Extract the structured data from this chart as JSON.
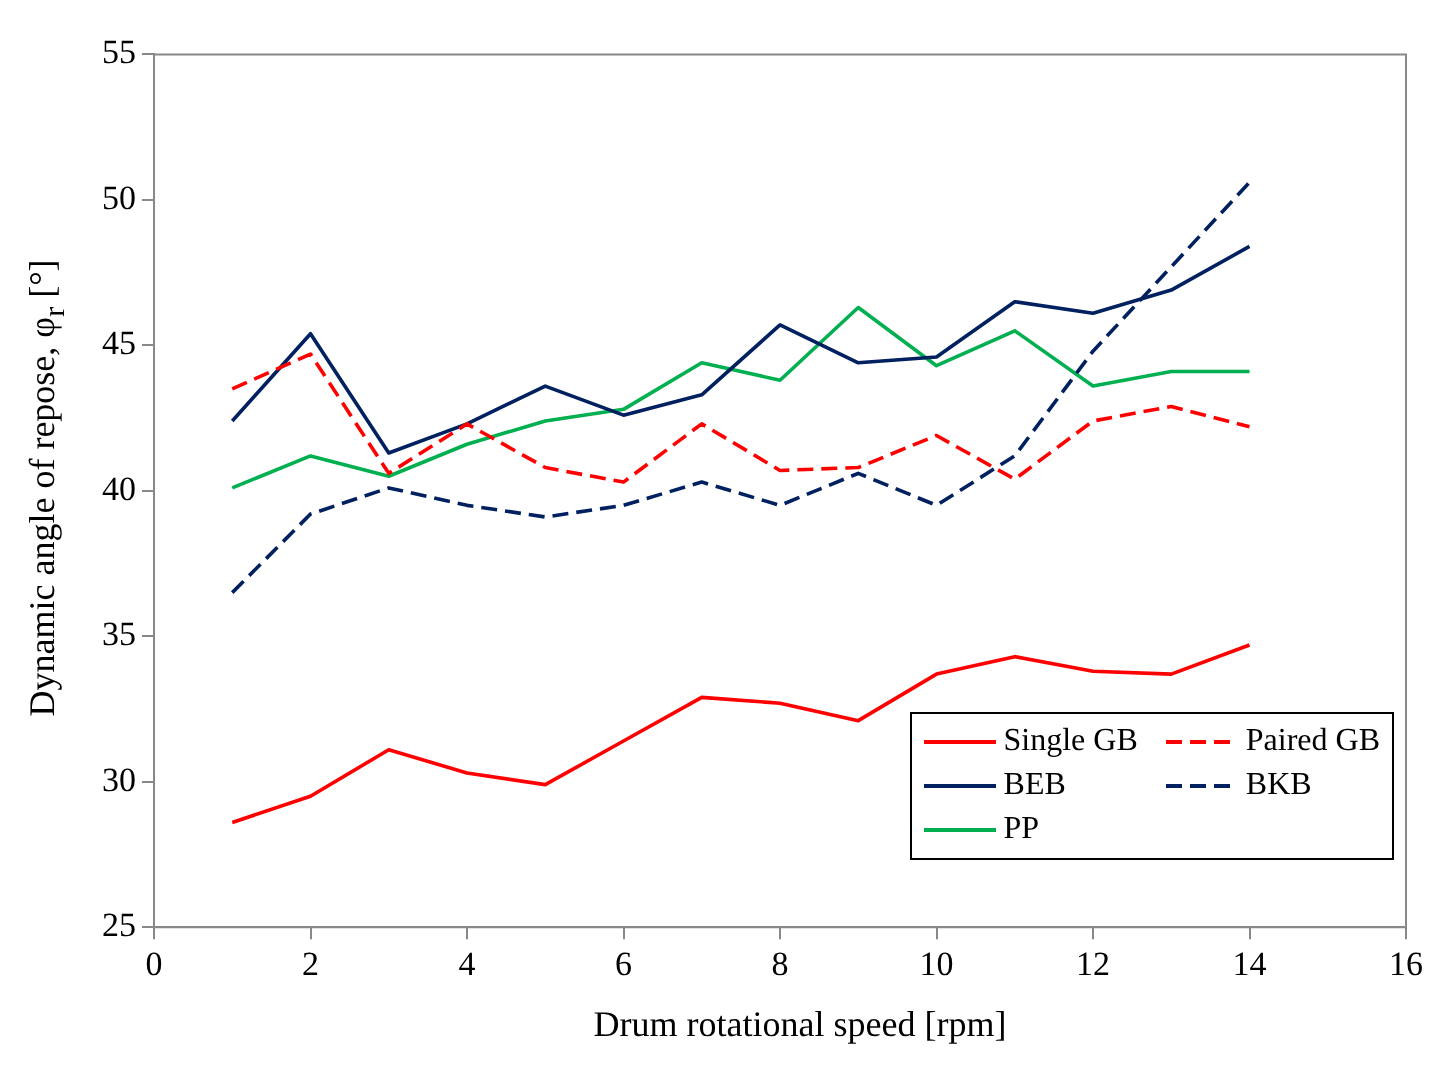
{
  "chart_data": {
    "type": "line",
    "xlabel": "Drum rotational speed [rpm]",
    "ylabel": "Dynamic angle of repose, φ$_{r}$ [°]",
    "x": [
      1,
      2,
      3,
      4,
      5,
      6,
      7,
      8,
      9,
      10,
      11,
      12,
      13,
      14
    ],
    "xlim": [
      0,
      16
    ],
    "xticks": [
      0,
      2,
      4,
      6,
      8,
      10,
      12,
      14,
      16
    ],
    "ylim": [
      25,
      55
    ],
    "yticks": [
      25,
      30,
      35,
      40,
      45,
      50,
      55
    ],
    "grid": false,
    "marker": "none",
    "legend": "bottom right",
    "series": [
      {
        "name": "Single GB",
        "color": "#ff0000",
        "line_style": "solid",
        "values": [
          28.6,
          29.5,
          31.1,
          30.3,
          29.9,
          31.4,
          32.9,
          32.7,
          32.1,
          33.7,
          34.3,
          33.8,
          33.7,
          34.7
        ]
      },
      {
        "name": "Paired GB",
        "color": "#ff0000",
        "line_style": "dashed",
        "values": [
          43.5,
          44.7,
          40.6,
          42.3,
          40.8,
          40.3,
          42.3,
          40.7,
          40.8,
          41.9,
          40.4,
          42.4,
          42.9,
          42.2
        ]
      },
      {
        "name": "BEB",
        "color": "#002060",
        "line_style": "solid",
        "values": [
          42.4,
          45.4,
          41.3,
          42.3,
          43.6,
          42.6,
          43.3,
          45.7,
          44.4,
          44.6,
          46.5,
          46.1,
          46.9,
          48.4
        ]
      },
      {
        "name": "BKB",
        "color": "#002060",
        "line_style": "dashed",
        "values": [
          36.5,
          39.2,
          40.1,
          39.5,
          39.1,
          39.5,
          40.3,
          39.5,
          40.6,
          39.5,
          41.2,
          44.8,
          47.7,
          50.6
        ]
      },
      {
        "name": "PP",
        "color": "#00b050",
        "line_style": "solid",
        "values": [
          40.1,
          41.2,
          40.5,
          41.6,
          42.4,
          42.8,
          44.4,
          43.8,
          46.3,
          44.3,
          45.5,
          43.6,
          44.1,
          44.1
        ]
      }
    ]
  }
}
